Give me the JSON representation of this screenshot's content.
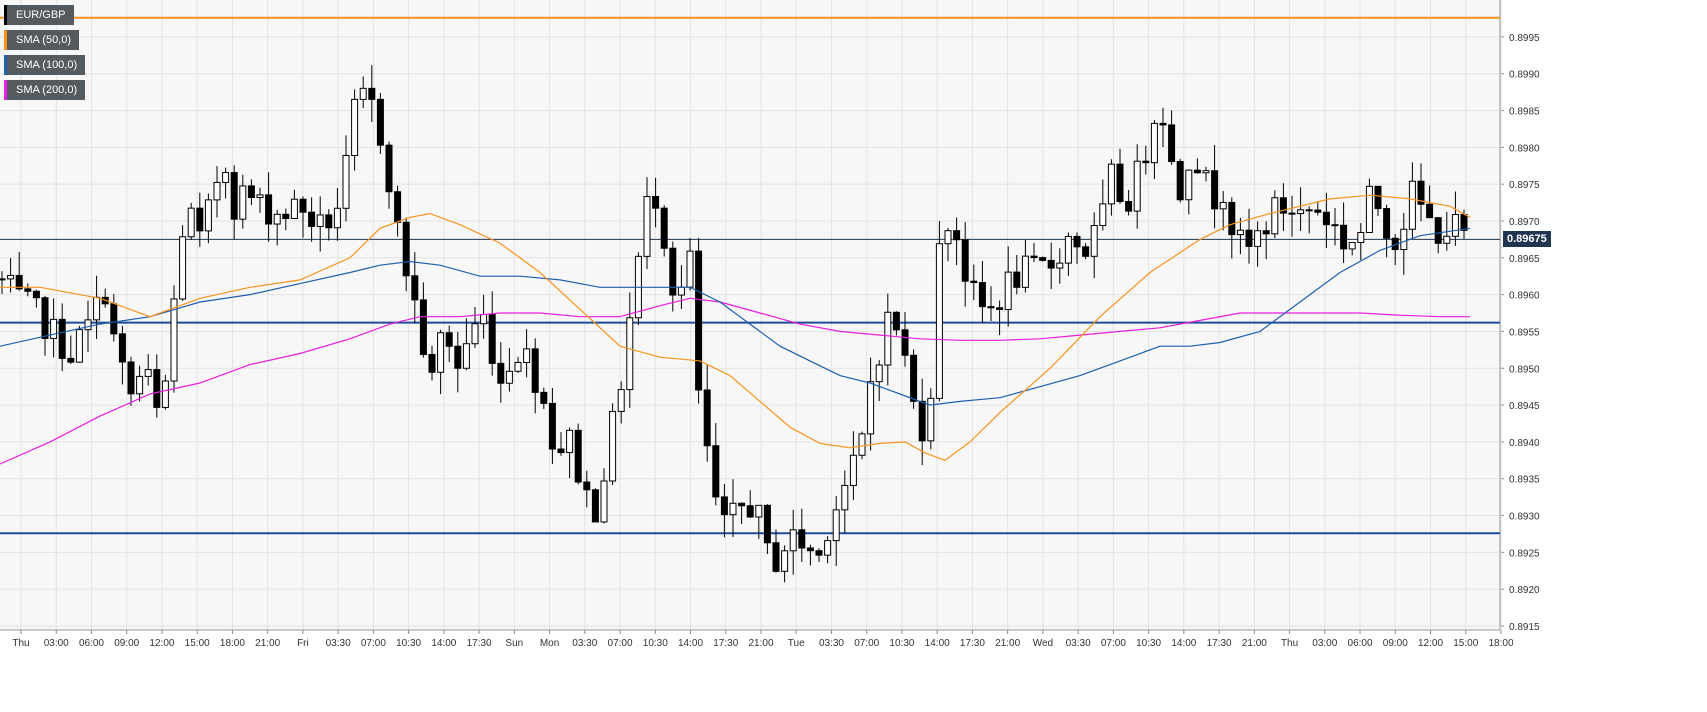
{
  "chart_data": {
    "type": "candlestick",
    "symbol": "EUR/GBP",
    "legend": [
      {
        "label": "EUR/GBP",
        "color": "#000000"
      },
      {
        "label": "SMA (50,0)",
        "color": "#f7941d"
      },
      {
        "label": "SMA (100,0)",
        "color": "#1f5fae"
      },
      {
        "label": "SMA (200,0)",
        "color": "#e81ee0"
      }
    ],
    "y_ticks": [
      "0.8995",
      "0.8990",
      "0.8985",
      "0.8980",
      "0.8975",
      "0.8970",
      "0.8965",
      "0.8960",
      "0.8955",
      "0.8950",
      "0.8945",
      "0.8940",
      "0.8935",
      "0.8930",
      "0.8925",
      "0.8920",
      "0.8915"
    ],
    "ylim": [
      0.89145,
      0.90004
    ],
    "x_ticks": [
      "Thu",
      "03:00",
      "06:00",
      "09:00",
      "12:00",
      "15:00",
      "18:00",
      "21:00",
      "Fri",
      "03:30",
      "07:00",
      "10:30",
      "14:00",
      "17:30",
      "Sun",
      "Mon",
      "03:30",
      "07:00",
      "10:30",
      "14:00",
      "17:30",
      "21:00",
      "Tue",
      "03:30",
      "07:00",
      "10:30",
      "14:00",
      "17:30",
      "21:00",
      "Wed",
      "03:30",
      "07:00",
      "10:30",
      "14:00",
      "17:30",
      "21:00",
      "Thu",
      "03:00",
      "06:00",
      "09:00",
      "12:00",
      "15:00",
      "18:00"
    ],
    "current_price": "0.89675",
    "horizontal_levels": [
      {
        "value": 0.89976,
        "color": "#f7941d"
      },
      {
        "value": 0.89675,
        "color": "#20354f"
      },
      {
        "value": 0.89562,
        "color": "#1f4d99"
      },
      {
        "value": 0.89276,
        "color": "#1f4d99"
      }
    ],
    "sma50": [
      [
        0,
        0.8961
      ],
      [
        40,
        0.8961
      ],
      [
        100,
        0.89595
      ],
      [
        150,
        0.8957
      ],
      [
        200,
        0.89595
      ],
      [
        250,
        0.8961
      ],
      [
        300,
        0.8962
      ],
      [
        350,
        0.8965
      ],
      [
        380,
        0.8969
      ],
      [
        410,
        0.89705
      ],
      [
        430,
        0.8971
      ],
      [
        460,
        0.89695
      ],
      [
        500,
        0.8967
      ],
      [
        540,
        0.8963
      ],
      [
        580,
        0.8958
      ],
      [
        620,
        0.8953
      ],
      [
        660,
        0.89515
      ],
      [
        700,
        0.8951
      ],
      [
        730,
        0.8949
      ],
      [
        760,
        0.89455
      ],
      [
        790,
        0.8942
      ],
      [
        820,
        0.89398
      ],
      [
        850,
        0.89392
      ],
      [
        880,
        0.89398
      ],
      [
        905,
        0.894
      ],
      [
        925,
        0.89385
      ],
      [
        945,
        0.89375
      ],
      [
        970,
        0.894
      ],
      [
        1000,
        0.8944
      ],
      [
        1050,
        0.895
      ],
      [
        1100,
        0.8957
      ],
      [
        1150,
        0.8963
      ],
      [
        1200,
        0.89675
      ],
      [
        1230,
        0.89695
      ],
      [
        1270,
        0.8971
      ],
      [
        1330,
        0.8973
      ],
      [
        1370,
        0.89735
      ],
      [
        1410,
        0.8973
      ],
      [
        1450,
        0.8972
      ],
      [
        1470,
        0.89705
      ]
    ],
    "sma100": [
      [
        0,
        0.8953
      ],
      [
        50,
        0.89545
      ],
      [
        100,
        0.8956
      ],
      [
        150,
        0.8957
      ],
      [
        200,
        0.8959
      ],
      [
        250,
        0.896
      ],
      [
        300,
        0.89615
      ],
      [
        350,
        0.8963
      ],
      [
        380,
        0.8964
      ],
      [
        410,
        0.89645
      ],
      [
        440,
        0.8964
      ],
      [
        480,
        0.89625
      ],
      [
        520,
        0.89625
      ],
      [
        560,
        0.8962
      ],
      [
        600,
        0.8961
      ],
      [
        630,
        0.8961
      ],
      [
        660,
        0.8961
      ],
      [
        690,
        0.8961
      ],
      [
        720,
        0.8959
      ],
      [
        750,
        0.8956
      ],
      [
        780,
        0.8953
      ],
      [
        810,
        0.8951
      ],
      [
        840,
        0.8949
      ],
      [
        870,
        0.8948
      ],
      [
        900,
        0.89465
      ],
      [
        930,
        0.8945
      ],
      [
        960,
        0.89455
      ],
      [
        1000,
        0.8946
      ],
      [
        1040,
        0.89475
      ],
      [
        1080,
        0.8949
      ],
      [
        1120,
        0.8951
      ],
      [
        1160,
        0.8953
      ],
      [
        1190,
        0.8953
      ],
      [
        1220,
        0.89535
      ],
      [
        1260,
        0.8955
      ],
      [
        1300,
        0.8959
      ],
      [
        1340,
        0.8963
      ],
      [
        1380,
        0.8966
      ],
      [
        1420,
        0.8968
      ],
      [
        1470,
        0.8969
      ]
    ],
    "sma200": [
      [
        0,
        0.8937
      ],
      [
        50,
        0.894
      ],
      [
        100,
        0.89435
      ],
      [
        150,
        0.89465
      ],
      [
        200,
        0.8948
      ],
      [
        250,
        0.89505
      ],
      [
        300,
        0.8952
      ],
      [
        350,
        0.8954
      ],
      [
        390,
        0.8956
      ],
      [
        420,
        0.8957
      ],
      [
        460,
        0.8957
      ],
      [
        500,
        0.89575
      ],
      [
        540,
        0.89575
      ],
      [
        580,
        0.8957
      ],
      [
        620,
        0.8957
      ],
      [
        660,
        0.89585
      ],
      [
        690,
        0.89595
      ],
      [
        720,
        0.8959
      ],
      [
        760,
        0.89575
      ],
      [
        800,
        0.8956
      ],
      [
        840,
        0.8955
      ],
      [
        880,
        0.89545
      ],
      [
        920,
        0.8954
      ],
      [
        960,
        0.89538
      ],
      [
        1000,
        0.89538
      ],
      [
        1040,
        0.8954
      ],
      [
        1080,
        0.89545
      ],
      [
        1120,
        0.8955
      ],
      [
        1160,
        0.89555
      ],
      [
        1200,
        0.89565
      ],
      [
        1240,
        0.89575
      ],
      [
        1280,
        0.89575
      ],
      [
        1320,
        0.89575
      ],
      [
        1360,
        0.89575
      ],
      [
        1400,
        0.89572
      ],
      [
        1440,
        0.8957
      ],
      [
        1470,
        0.8957
      ]
    ],
    "price_path": [
      [
        0,
        0.8962
      ],
      [
        20,
        0.8959
      ],
      [
        40,
        0.8957
      ],
      [
        70,
        0.8952
      ],
      [
        90,
        0.8956
      ],
      [
        105,
        0.8961
      ],
      [
        115,
        0.8953
      ],
      [
        130,
        0.8946
      ],
      [
        145,
        0.895
      ],
      [
        160,
        0.8942
      ],
      [
        170,
        0.8953
      ],
      [
        180,
        0.8968
      ],
      [
        190,
        0.8971
      ],
      [
        200,
        0.8967
      ],
      [
        215,
        0.8974
      ],
      [
        222,
        0.898
      ],
      [
        235,
        0.8972
      ],
      [
        245,
        0.8974
      ],
      [
        260,
        0.8972
      ],
      [
        280,
        0.8971
      ],
      [
        300,
        0.8972
      ],
      [
        320,
        0.8969
      ],
      [
        335,
        0.8971
      ],
      [
        345,
        0.8976
      ],
      [
        355,
        0.8985
      ],
      [
        368,
        0.8987
      ],
      [
        380,
        0.8982
      ],
      [
        392,
        0.8974
      ],
      [
        400,
        0.8966
      ],
      [
        410,
        0.8962
      ],
      [
        420,
        0.8955
      ],
      [
        432,
        0.8948
      ],
      [
        445,
        0.8957
      ],
      [
        455,
        0.8949
      ],
      [
        470,
        0.8955
      ],
      [
        485,
        0.8957
      ],
      [
        500,
        0.8948
      ],
      [
        515,
        0.8953
      ],
      [
        530,
        0.8951
      ],
      [
        545,
        0.8945
      ],
      [
        555,
        0.8939
      ],
      [
        570,
        0.894
      ],
      [
        585,
        0.8933
      ],
      [
        595,
        0.8931
      ],
      [
        610,
        0.894
      ],
      [
        622,
        0.8949
      ],
      [
        632,
        0.8959
      ],
      [
        642,
        0.8968
      ],
      [
        652,
        0.8976
      ],
      [
        658,
        0.8972
      ],
      [
        668,
        0.8966
      ],
      [
        678,
        0.8956
      ],
      [
        688,
        0.897
      ],
      [
        695,
        0.895
      ],
      [
        705,
        0.894
      ],
      [
        715,
        0.8932
      ],
      [
        725,
        0.8928
      ],
      [
        740,
        0.8931
      ],
      [
        755,
        0.8932
      ],
      [
        765,
        0.8925
      ],
      [
        775,
        0.8924
      ],
      [
        790,
        0.8927
      ],
      [
        805,
        0.8926
      ],
      [
        818,
        0.8924
      ],
      [
        830,
        0.893
      ],
      [
        845,
        0.8934
      ],
      [
        860,
        0.8938
      ],
      [
        870,
        0.8948
      ],
      [
        882,
        0.8954
      ],
      [
        892,
        0.8958
      ],
      [
        905,
        0.8951
      ],
      [
        915,
        0.8944
      ],
      [
        928,
        0.8941
      ],
      [
        938,
        0.8965
      ],
      [
        948,
        0.897
      ],
      [
        958,
        0.8968
      ],
      [
        968,
        0.8961
      ],
      [
        980,
        0.8958
      ],
      [
        992,
        0.8958
      ],
      [
        1005,
        0.8961
      ],
      [
        1020,
        0.8963
      ],
      [
        1035,
        0.8963
      ],
      [
        1050,
        0.8964
      ],
      [
        1070,
        0.8968
      ],
      [
        1085,
        0.8966
      ],
      [
        1100,
        0.8969
      ],
      [
        1112,
        0.8976
      ],
      [
        1125,
        0.8972
      ],
      [
        1140,
        0.8977
      ],
      [
        1150,
        0.8982
      ],
      [
        1160,
        0.8988
      ],
      [
        1170,
        0.8978
      ],
      [
        1180,
        0.8974
      ],
      [
        1192,
        0.8981
      ],
      [
        1200,
        0.8977
      ],
      [
        1212,
        0.8973
      ],
      [
        1225,
        0.8975
      ],
      [
        1235,
        0.8967
      ],
      [
        1250,
        0.8966
      ],
      [
        1262,
        0.8969
      ],
      [
        1272,
        0.8971
      ],
      [
        1285,
        0.8972
      ],
      [
        1300,
        0.8971
      ],
      [
        1315,
        0.8972
      ],
      [
        1330,
        0.897
      ],
      [
        1345,
        0.8967
      ],
      [
        1360,
        0.8968
      ],
      [
        1372,
        0.8974
      ],
      [
        1385,
        0.897
      ],
      [
        1398,
        0.8967
      ],
      [
        1410,
        0.8974
      ],
      [
        1420,
        0.8972
      ],
      [
        1432,
        0.8969
      ],
      [
        1445,
        0.8969
      ],
      [
        1458,
        0.8969
      ],
      [
        1470,
        0.8967
      ]
    ]
  }
}
